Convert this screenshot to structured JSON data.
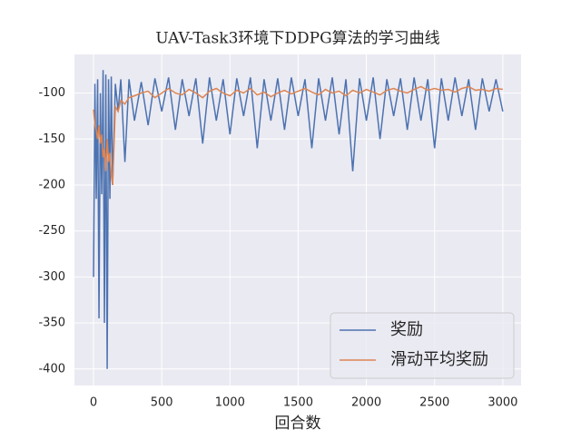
{
  "chart_data": {
    "type": "line",
    "title": "UAV-Task3环境下DDPG算法的学习曲线",
    "xlabel": "回合数",
    "x": [
      0,
      10,
      20,
      30,
      40,
      50,
      60,
      70,
      80,
      90,
      100,
      110,
      120,
      130,
      140,
      160,
      180,
      200,
      230,
      260,
      300,
      350,
      400,
      450,
      500,
      550,
      600,
      650,
      700,
      750,
      800,
      850,
      900,
      950,
      1000,
      1050,
      1100,
      1150,
      1200,
      1250,
      1300,
      1350,
      1400,
      1450,
      1500,
      1550,
      1600,
      1650,
      1700,
      1750,
      1800,
      1850,
      1900,
      1950,
      2000,
      2050,
      2100,
      2150,
      2200,
      2250,
      2300,
      2350,
      2400,
      2450,
      2500,
      2550,
      2600,
      2650,
      2700,
      2750,
      2800,
      2850,
      2900,
      2950,
      3000
    ],
    "series": [
      {
        "name": "奖励",
        "color": "#4c72b0",
        "values": [
          -300,
          -90,
          -215,
          -85,
          -345,
          -100,
          -210,
          -75,
          -350,
          -80,
          -400,
          -85,
          -215,
          -82,
          -200,
          -90,
          -120,
          -85,
          -175,
          -85,
          -130,
          -88,
          -135,
          -84,
          -120,
          -83,
          -140,
          -85,
          -125,
          -84,
          -155,
          -83,
          -130,
          -85,
          -145,
          -84,
          -125,
          -83,
          -160,
          -85,
          -130,
          -84,
          -140,
          -83,
          -125,
          -85,
          -160,
          -84,
          -130,
          -83,
          -145,
          -85,
          -185,
          -84,
          -130,
          -83,
          -150,
          -85,
          -125,
          -84,
          -140,
          -83,
          -130,
          -85,
          -160,
          -84,
          -130,
          -83,
          -125,
          -85,
          -140,
          -84,
          -120,
          -85,
          -120
        ]
      },
      {
        "name": "滑动平均奖励",
        "color": "#dd8452",
        "values": [
          -118,
          -135,
          -140,
          -150,
          -135,
          -155,
          -145,
          -170,
          -160,
          -185,
          -150,
          -175,
          -165,
          -190,
          -200,
          -115,
          -120,
          -108,
          -112,
          -105,
          -103,
          -100,
          -98,
          -105,
          -100,
          -95,
          -100,
          -102,
          -96,
          -100,
          -105,
          -98,
          -95,
          -100,
          -103,
          -97,
          -100,
          -95,
          -102,
          -99,
          -104,
          -100,
          -97,
          -101,
          -98,
          -95,
          -99,
          -102,
          -96,
          -100,
          -98,
          -103,
          -97,
          -100,
          -96,
          -99,
          -102,
          -97,
          -95,
          -98,
          -100,
          -96,
          -93,
          -97,
          -95,
          -97,
          -96,
          -99,
          -95,
          -93,
          -97,
          -96,
          -98,
          -95,
          -96
        ]
      }
    ],
    "xlim": [
      -140,
      3134
    ],
    "ylim": [
      -418,
      -58
    ],
    "xticks": [
      0,
      500,
      1000,
      1500,
      2000,
      2500,
      3000
    ],
    "yticks": [
      -400,
      -350,
      -300,
      -250,
      -200,
      -150,
      -100
    ],
    "grid": true,
    "legend": "lower right"
  }
}
